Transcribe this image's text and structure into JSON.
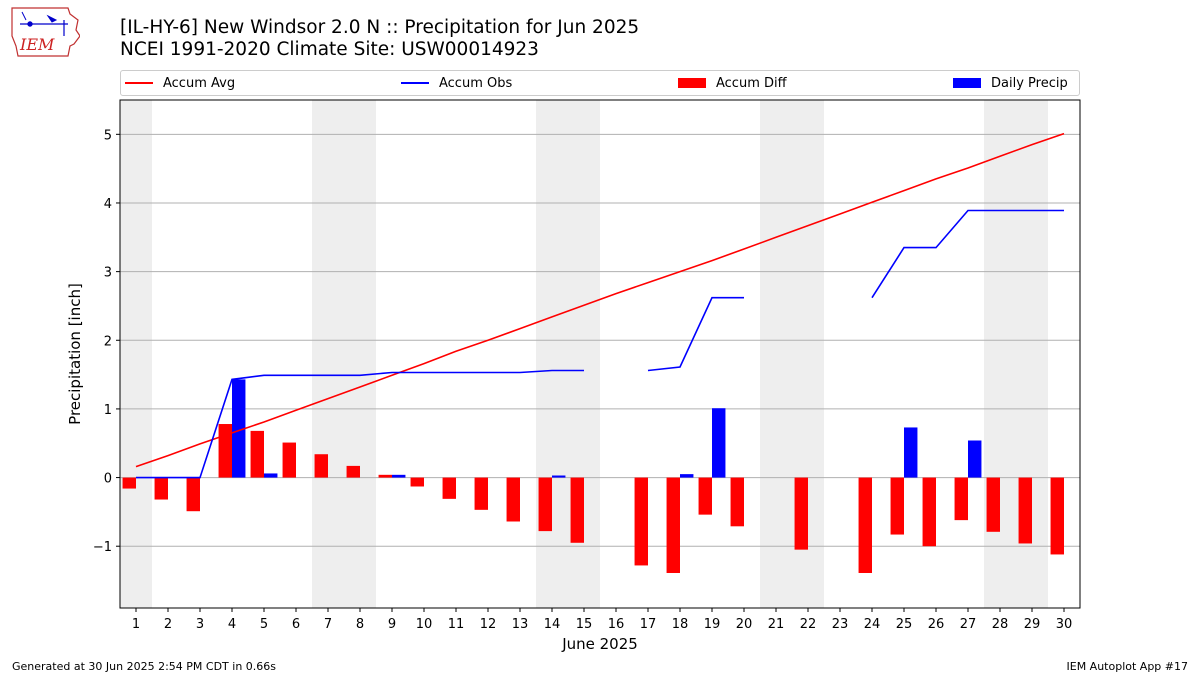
{
  "header": {
    "title_line1": "[IL-HY-6] New Windsor 2.0 N :: Precipitation for Jun 2025",
    "title_line2": "NCEI 1991-2020 Climate Site: USW00014923",
    "logo_text": "IEM",
    "logo_icon": "iem-iowa-logo-icon"
  },
  "legend": {
    "items": [
      {
        "label": "Accum Avg",
        "kind": "line",
        "color": "#ff0000"
      },
      {
        "label": "Accum Obs",
        "kind": "line",
        "color": "#0000ff"
      },
      {
        "label": "Accum Diff",
        "kind": "patch",
        "color": "#ff0000"
      },
      {
        "label": "Daily Precip",
        "kind": "patch",
        "color": "#0000ff"
      }
    ]
  },
  "footer": {
    "left": "Generated at 30 Jun 2025 2:54 PM CDT in 0.66s",
    "right": "IEM Autoplot App #17"
  },
  "chart_data": {
    "type": "bar",
    "title": "[IL-HY-6] New Windsor 2.0 N :: Precipitation for Jun 2025",
    "subtitle": "NCEI 1991-2020 Climate Site: USW00014923",
    "xlabel": "June 2025",
    "ylabel": "Precipitation [inch]",
    "xlim": [
      0.5,
      30.5
    ],
    "ylim": [
      -1.9,
      5.5
    ],
    "yticks": [
      -1,
      0,
      1,
      2,
      3,
      4,
      5
    ],
    "ytick_labels": [
      "−1",
      "0",
      "1",
      "2",
      "3",
      "4",
      "5"
    ],
    "x": [
      1,
      2,
      3,
      4,
      5,
      6,
      7,
      8,
      9,
      10,
      11,
      12,
      13,
      14,
      15,
      16,
      17,
      18,
      19,
      20,
      21,
      22,
      23,
      24,
      25,
      26,
      27,
      28,
      29,
      30
    ],
    "xtick_labels": [
      "1",
      "2",
      "3",
      "4",
      "5",
      "6",
      "7",
      "8",
      "9",
      "10",
      "11",
      "12",
      "13",
      "14",
      "15",
      "16",
      "17",
      "18",
      "19",
      "20",
      "21",
      "22",
      "23",
      "24",
      "25",
      "26",
      "27",
      "28",
      "29",
      "30"
    ],
    "grid": "y",
    "legend_position": "top",
    "weekend_shading": [
      [
        0.5,
        1.5
      ],
      [
        6.5,
        8.5
      ],
      [
        13.5,
        15.5
      ],
      [
        20.5,
        22.5
      ],
      [
        27.5,
        29.5
      ]
    ],
    "weekend_color": "#eeeeee",
    "series": [
      {
        "name": "Accum Avg",
        "kind": "line",
        "color": "#ff0000",
        "values": [
          0.16,
          0.32,
          0.49,
          0.65,
          0.81,
          0.98,
          1.15,
          1.32,
          1.49,
          1.66,
          1.84,
          2.0,
          2.17,
          2.34,
          2.51,
          2.68,
          2.84,
          3.0,
          3.16,
          3.33,
          3.5,
          3.67,
          3.84,
          4.01,
          4.18,
          4.35,
          4.51,
          4.68,
          4.85,
          5.01
        ]
      },
      {
        "name": "Accum Obs",
        "kind": "line",
        "color": "#0000ff",
        "values": [
          0.0,
          0.0,
          0.0,
          1.43,
          1.49,
          1.49,
          1.49,
          1.49,
          1.53,
          1.53,
          1.53,
          1.53,
          1.53,
          1.56,
          1.56,
          null,
          1.56,
          1.61,
          2.62,
          2.62,
          null,
          null,
          null,
          2.62,
          3.35,
          3.35,
          3.89,
          3.89,
          3.89,
          3.89
        ]
      },
      {
        "name": "Accum Diff",
        "kind": "bar",
        "color": "#ff0000",
        "values": [
          -0.16,
          -0.32,
          -0.49,
          0.78,
          0.68,
          0.51,
          0.34,
          0.17,
          0.04,
          -0.13,
          -0.31,
          -0.47,
          -0.64,
          -0.78,
          -0.95,
          null,
          -1.28,
          -1.39,
          -0.54,
          -0.71,
          null,
          -1.05,
          null,
          -1.39,
          -0.83,
          -1.0,
          -0.62,
          -0.79,
          -0.96,
          -1.12
        ]
      },
      {
        "name": "Daily Precip",
        "kind": "bar",
        "color": "#0000ff",
        "values": [
          0,
          0,
          0,
          1.43,
          0.06,
          0,
          0,
          0,
          0.04,
          0,
          0,
          0,
          0,
          0.03,
          0,
          null,
          0,
          0.05,
          1.01,
          0,
          null,
          null,
          null,
          null,
          0.73,
          0,
          0.54,
          0,
          0,
          0
        ]
      }
    ]
  }
}
